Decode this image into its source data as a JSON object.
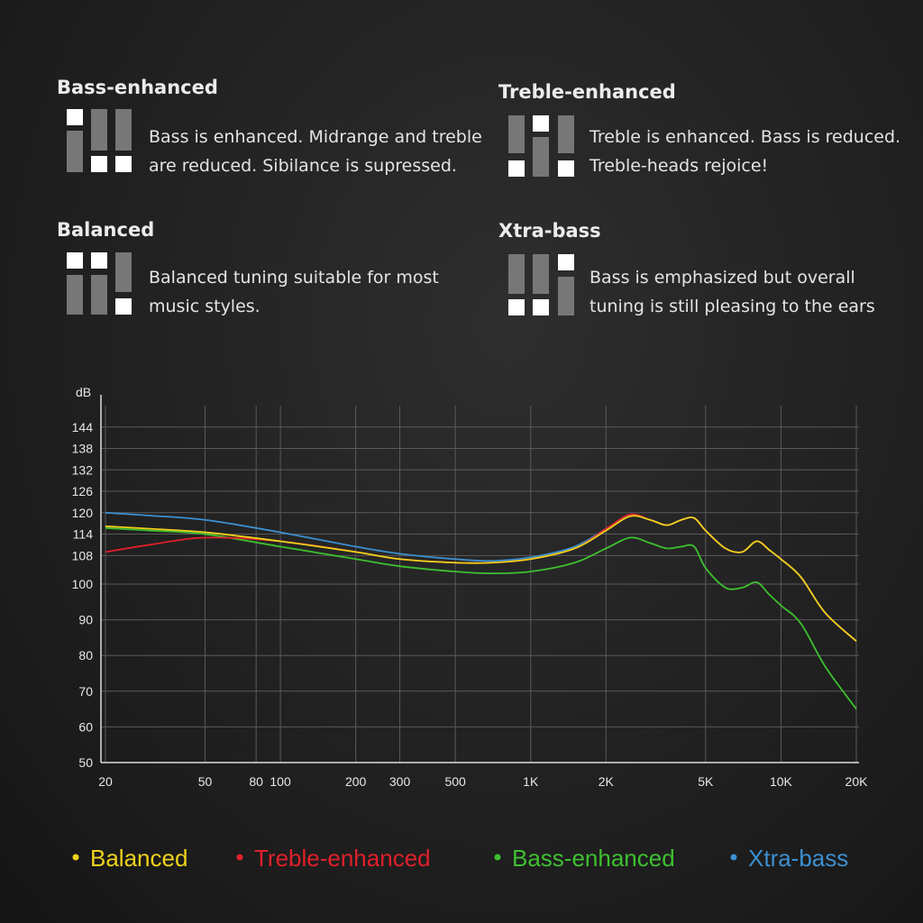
{
  "modes": [
    {
      "title": "Bass-enhanced",
      "lines": [
        "Bass is enhanced. Midrange and treble",
        "are reduced. Sibilance is supressed."
      ]
    },
    {
      "title": "Treble-enhanced",
      "lines": [
        "Treble is enhanced. Bass is reduced.",
        "Treble-heads rejoice!"
      ]
    },
    {
      "title": "Balanced",
      "lines": [
        "Balanced tuning suitable for most",
        "music styles."
      ]
    },
    {
      "title": "Xtra-bass",
      "lines": [
        "Bass is emphasized but overall",
        "tuning is still pleasing to the ears"
      ]
    }
  ],
  "chart_data": {
    "type": "line",
    "y_label": "dB",
    "log_x": true,
    "x": [
      20,
      30,
      50,
      100,
      200,
      300,
      500,
      700,
      1000,
      1500,
      2000,
      2500,
      3000,
      3500,
      4000,
      4500,
      5000,
      6000,
      7000,
      8000,
      9000,
      10000,
      12000,
      15000,
      20000
    ],
    "xlim": [
      20,
      20000
    ],
    "xticks": [
      20,
      50,
      80,
      100,
      200,
      300,
      500,
      {
        "value": 1000,
        "label": "1K"
      },
      {
        "value": 2000,
        "label": "2K"
      },
      {
        "value": 5000,
        "label": "5K"
      },
      {
        "value": 10000,
        "label": "10K"
      },
      {
        "value": 20000,
        "label": "20K"
      }
    ],
    "ylim": [
      50,
      150
    ],
    "yticks": [
      50,
      60,
      70,
      80,
      90,
      100,
      108,
      114,
      120,
      126,
      132,
      138,
      144
    ],
    "grid": true,
    "series": [
      {
        "name": "Balanced",
        "color": "#f0d21c",
        "values": [
          116.2,
          115.5,
          114.5,
          112,
          109,
          107,
          106,
          106,
          107,
          110,
          115,
          119,
          118,
          116.5,
          118,
          118.5,
          115,
          110,
          109,
          112,
          109.5,
          107,
          102,
          92,
          84
        ]
      },
      {
        "name": "Treble-enhanced",
        "color": "#e0202a",
        "values": [
          109,
          111,
          113,
          112,
          109,
          107,
          106,
          106,
          107,
          110,
          115.5,
          119.5,
          118,
          116.5,
          118,
          118.5,
          115,
          110,
          109,
          112,
          109.5,
          107,
          102,
          92,
          84
        ]
      },
      {
        "name": "Bass-enhanced",
        "color": "#3ec030",
        "values": [
          115.7,
          115,
          114,
          110.5,
          107,
          105,
          103.5,
          103,
          103.5,
          106,
          110,
          113,
          111.5,
          110,
          110.5,
          110.5,
          104.5,
          99,
          99,
          100.5,
          97,
          94,
          89,
          77,
          65
        ]
      },
      {
        "name": "Xtra-bass",
        "color": "#3c8fd0",
        "values": [
          120,
          119.2,
          118,
          114.5,
          110.5,
          108.5,
          107,
          106.5,
          107.5,
          110.5,
          115.5,
          119.2,
          118,
          116.5,
          118,
          118.5,
          115,
          110,
          109,
          112,
          109.5,
          107,
          102,
          92,
          84
        ]
      }
    ]
  }
}
